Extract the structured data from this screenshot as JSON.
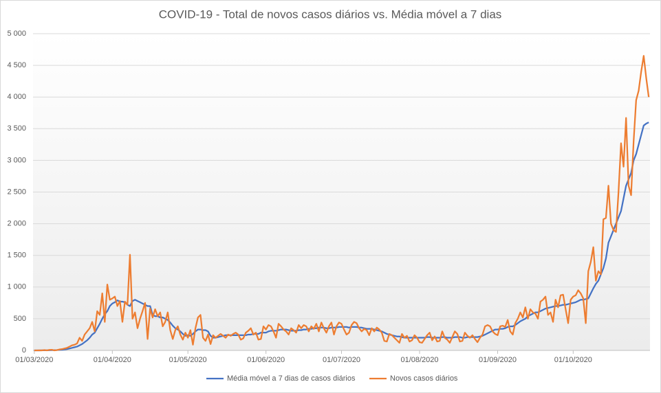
{
  "chart_data": {
    "type": "line",
    "title": "COVID-19 - Total  de novos casos diários vs. Média móvel a 7 dias",
    "categories": [
      "01/03/2020",
      null,
      null,
      null,
      null,
      null,
      null,
      null,
      null,
      null,
      null,
      null,
      null,
      null,
      null,
      null,
      null,
      null,
      null,
      null,
      null,
      null,
      null,
      null,
      null,
      null,
      null,
      null,
      null,
      null,
      null,
      "01/04/2020",
      null,
      null,
      null,
      null,
      null,
      null,
      null,
      null,
      null,
      null,
      null,
      null,
      null,
      null,
      null,
      null,
      null,
      null,
      null,
      null,
      null,
      null,
      null,
      null,
      null,
      null,
      null,
      null,
      null,
      "01/05/2020",
      null,
      null,
      null,
      null,
      null,
      null,
      null,
      null,
      null,
      null,
      null,
      null,
      null,
      null,
      null,
      null,
      null,
      null,
      null,
      null,
      null,
      null,
      null,
      null,
      null,
      null,
      null,
      null,
      null,
      null,
      "01/06/2020",
      null,
      null,
      null,
      null,
      null,
      null,
      null,
      null,
      null,
      null,
      null,
      null,
      null,
      null,
      null,
      null,
      null,
      null,
      null,
      null,
      null,
      null,
      null,
      null,
      null,
      null,
      null,
      null,
      null,
      "01/07/2020",
      null,
      null,
      null,
      null,
      null,
      null,
      null,
      null,
      null,
      null,
      null,
      null,
      null,
      null,
      null,
      null,
      null,
      null,
      null,
      null,
      null,
      null,
      null,
      null,
      null,
      null,
      null,
      null,
      null,
      null,
      "01/08/2020",
      null,
      null,
      null,
      null,
      null,
      null,
      null,
      null,
      null,
      null,
      null,
      null,
      null,
      null,
      null,
      null,
      null,
      null,
      null,
      null,
      null,
      null,
      null,
      null,
      null,
      null,
      null,
      null,
      null,
      null,
      "01/09/2020",
      null,
      null,
      null,
      null,
      null,
      null,
      null,
      null,
      null,
      null,
      null,
      null,
      null,
      null,
      null,
      null,
      null,
      null,
      null,
      null,
      null,
      null,
      null,
      null,
      null,
      null,
      null,
      null,
      null,
      "01/10/2020",
      null,
      null,
      null,
      null,
      null,
      null,
      null,
      null,
      null,
      null,
      null,
      null,
      null,
      null,
      null,
      null,
      null,
      null,
      null,
      null,
      null,
      null,
      null,
      null,
      null,
      null,
      null,
      null,
      null,
      null
    ],
    "series": [
      {
        "name": "Média móvel a 7 dias de casos diários",
        "color": "#4472c4",
        "values": [
          0,
          0,
          0,
          1,
          2,
          2,
          3,
          4,
          4,
          5,
          8,
          10,
          15,
          20,
          30,
          40,
          50,
          60,
          80,
          100,
          130,
          160,
          200,
          250,
          280,
          350,
          420,
          500,
          570,
          620,
          700,
          740,
          760,
          790,
          770,
          770,
          760,
          720,
          700,
          780,
          800,
          780,
          760,
          740,
          720,
          700,
          700,
          560,
          540,
          540,
          520,
          520,
          500,
          480,
          440,
          390,
          350,
          330,
          300,
          260,
          230,
          240,
          230,
          260,
          300,
          330,
          330,
          320,
          320,
          300,
          230,
          200,
          200,
          210,
          220,
          230,
          240,
          240,
          240,
          240,
          240,
          240,
          240,
          240,
          240,
          250,
          250,
          260,
          260,
          260,
          280,
          280,
          280,
          300,
          310,
          310,
          310,
          320,
          330,
          330,
          330,
          320,
          310,
          310,
          310,
          320,
          320,
          330,
          330,
          340,
          340,
          350,
          350,
          360,
          360,
          360,
          350,
          350,
          360,
          360,
          360,
          370,
          370,
          370,
          370,
          360,
          370,
          370,
          370,
          360,
          360,
          350,
          340,
          340,
          340,
          330,
          320,
          310,
          300,
          280,
          260,
          250,
          240,
          230,
          220,
          220,
          210,
          200,
          200,
          200,
          200,
          200,
          200,
          200,
          200,
          200,
          210,
          210,
          200,
          200,
          200,
          200,
          210,
          210,
          200,
          200,
          200,
          210,
          210,
          210,
          200,
          200,
          210,
          210,
          210,
          210,
          210,
          220,
          230,
          250,
          270,
          290,
          310,
          330,
          330,
          340,
          340,
          350,
          370,
          380,
          380,
          400,
          430,
          460,
          480,
          500,
          540,
          560,
          580,
          600,
          600,
          620,
          640,
          660,
          670,
          680,
          690,
          700,
          700,
          710,
          720,
          720,
          730,
          740,
          750,
          760,
          780,
          800,
          800,
          810,
          820,
          900,
          980,
          1050,
          1100,
          1200,
          1300,
          1450,
          1700,
          1800,
          1900,
          2000,
          2100,
          2200,
          2400,
          2600,
          2700,
          2800,
          3000,
          3100,
          3250,
          3400,
          3550,
          3580,
          3600
        ]
      },
      {
        "name": "Novos casos diários",
        "color": "#ed7d31",
        "values": [
          0,
          0,
          2,
          0,
          5,
          0,
          8,
          10,
          0,
          5,
          15,
          20,
          30,
          40,
          60,
          80,
          90,
          110,
          200,
          150,
          250,
          300,
          350,
          450,
          300,
          620,
          560,
          900,
          450,
          1040,
          800,
          820,
          850,
          700,
          780,
          450,
          770,
          720,
          1510,
          500,
          600,
          350,
          500,
          620,
          750,
          180,
          660,
          520,
          650,
          540,
          600,
          380,
          450,
          600,
          320,
          180,
          320,
          380,
          250,
          170,
          280,
          200,
          320,
          90,
          350,
          520,
          560,
          200,
          150,
          250,
          100,
          240,
          200,
          230,
          260,
          230,
          200,
          250,
          230,
          260,
          280,
          250,
          170,
          190,
          280,
          310,
          350,
          250,
          280,
          170,
          180,
          380,
          330,
          400,
          380,
          300,
          200,
          420,
          380,
          330,
          300,
          250,
          350,
          320,
          280,
          400,
          350,
          400,
          380,
          300,
          380,
          340,
          420,
          300,
          440,
          350,
          280,
          380,
          440,
          250,
          380,
          440,
          420,
          330,
          250,
          280,
          400,
          450,
          430,
          350,
          300,
          340,
          320,
          240,
          350,
          300,
          360,
          330,
          280,
          150,
          140,
          260,
          240,
          200,
          160,
          120,
          260,
          200,
          230,
          140,
          160,
          240,
          200,
          130,
          120,
          180,
          240,
          280,
          160,
          220,
          140,
          150,
          300,
          200,
          170,
          120,
          210,
          300,
          260,
          140,
          150,
          280,
          230,
          200,
          240,
          180,
          130,
          200,
          250,
          380,
          400,
          380,
          300,
          260,
          240,
          380,
          390,
          370,
          480,
          300,
          250,
          430,
          500,
          600,
          520,
          680,
          500,
          650,
          600,
          580,
          500,
          770,
          800,
          850,
          560,
          600,
          450,
          800,
          680,
          870,
          880,
          650,
          430,
          800,
          850,
          870,
          950,
          900,
          820,
          430,
          1250,
          1400,
          1630,
          1100,
          1250,
          1200,
          2070,
          2090,
          2600,
          2000,
          1900,
          1870,
          2500,
          3270,
          2900,
          3670,
          2600,
          2450,
          3300,
          3950,
          4100,
          4400,
          4650,
          4300,
          4000
        ]
      }
    ],
    "ylim": [
      0,
      5000
    ],
    "yticks": [
      0,
      500,
      {
        "value": 1000,
        "label": "1 000"
      },
      {
        "value": 1500,
        "label": "1 500"
      },
      {
        "value": 2000,
        "label": "2 000"
      },
      {
        "value": 2500,
        "label": "2 500"
      },
      {
        "value": 3000,
        "label": "3 000"
      },
      {
        "value": 3500,
        "label": "3 500"
      },
      {
        "value": 4000,
        "label": "4 000"
      },
      {
        "value": 4500,
        "label": "4 500"
      },
      {
        "value": 5000,
        "label": "5 000"
      }
    ],
    "grid": true,
    "legend": "bottom"
  }
}
